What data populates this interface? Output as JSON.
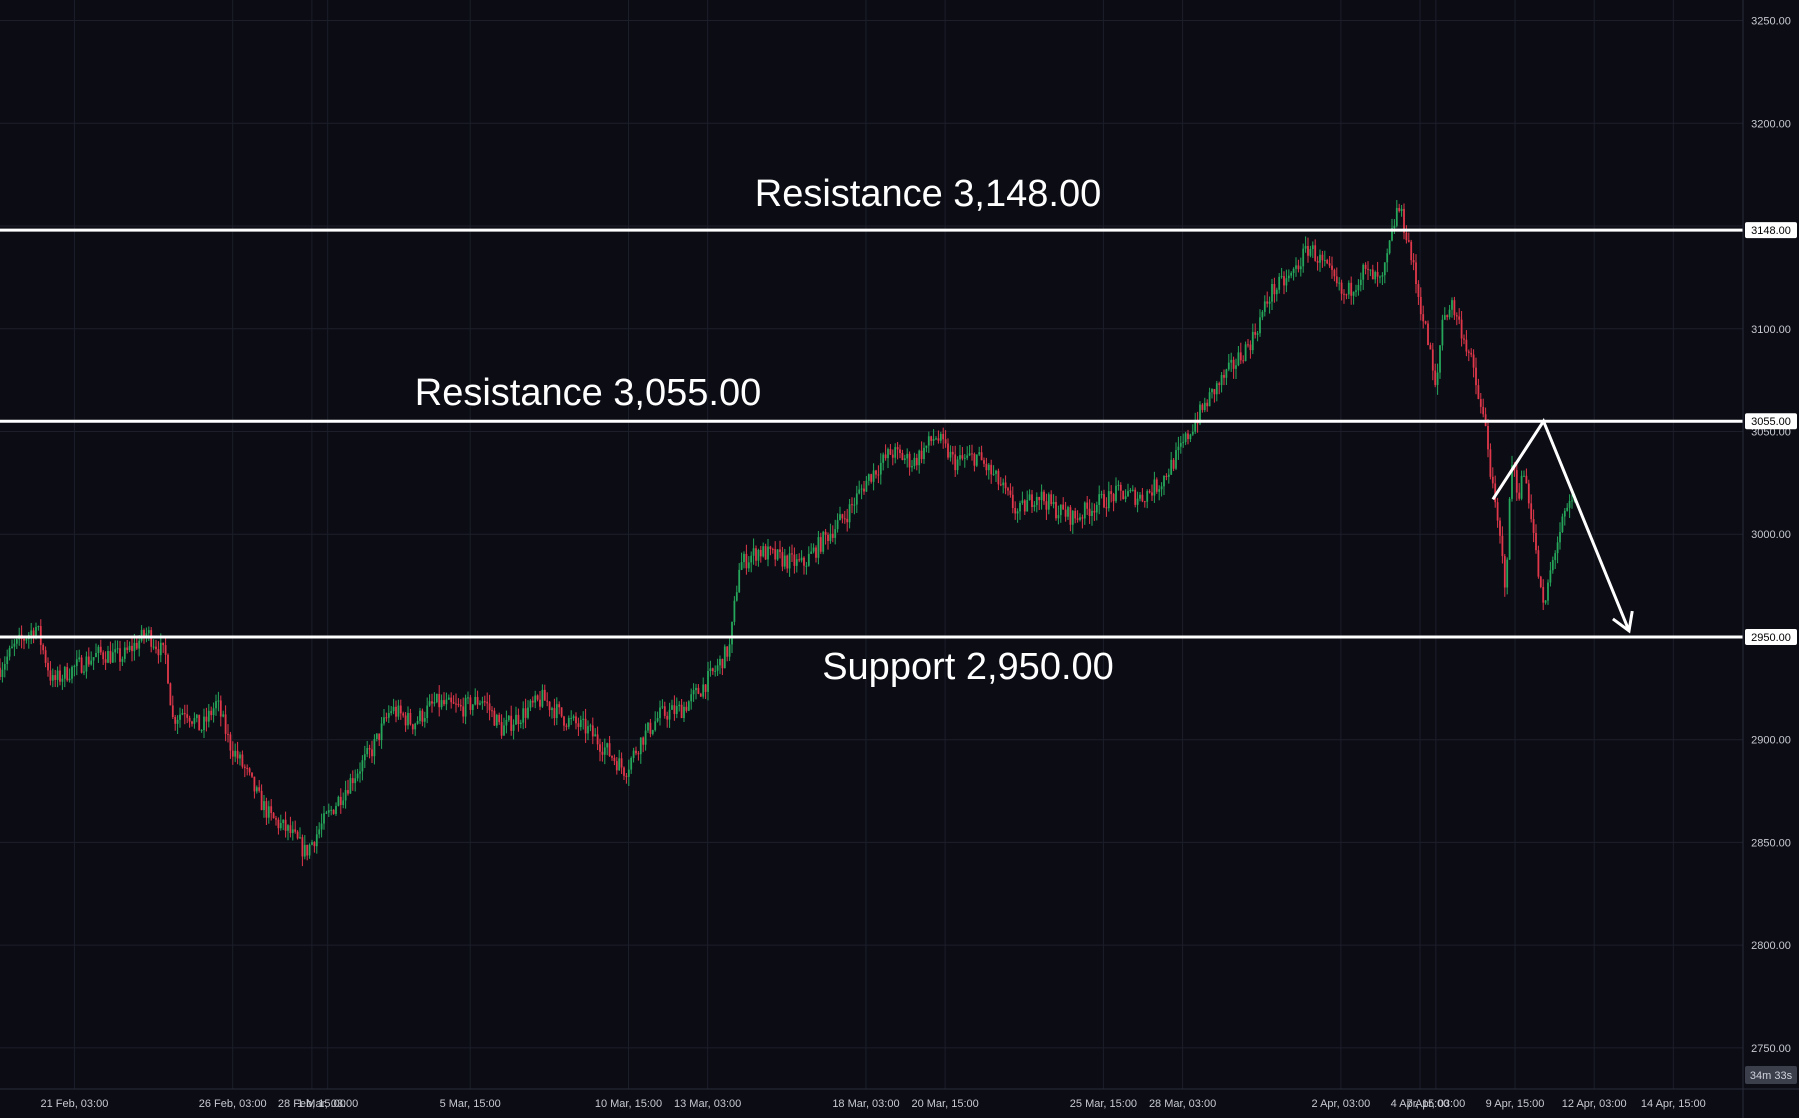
{
  "colors": {
    "background": "#0b0c14",
    "grid": "#1c1e2a",
    "up": "#26a65b",
    "down": "#e0384a",
    "annotation_line": "#ffffff",
    "axis_text": "#c8cad2",
    "timer_bg": "#3b3f4c"
  },
  "countdown": "34m 33s",
  "chart_data": {
    "type": "candlestick",
    "title": "",
    "xlabel": "",
    "ylabel": "",
    "ylim": [
      2730,
      3260
    ],
    "y_ticks": [
      "2750.00",
      "2800.00",
      "2850.00",
      "2900.00",
      "2950.00",
      "3000.00",
      "3050.00",
      "3100.00",
      "3150.00",
      "3200.00",
      "3250.00"
    ],
    "y_tick_values": [
      2750,
      2800,
      2850,
      2900,
      2950,
      3000,
      3050,
      3100,
      3150,
      3200,
      3250
    ],
    "x_ticks": [
      "21 Feb, 03:00",
      "26 Feb, 03:00",
      "28 Feb, 15:00",
      "1 Mar, 03:00",
      "5 Mar, 15:00",
      "10 Mar, 15:00",
      "13 Mar, 03:00",
      "18 Mar, 03:00",
      "20 Mar, 15:00",
      "25 Mar, 15:00",
      "28 Mar, 03:00",
      "2 Apr, 03:00",
      "4 Apr, 15:00",
      "7 Apr, 03:00",
      "9 Apr, 15:00",
      "12 Apr, 03:00",
      "14 Apr, 15:00"
    ],
    "x_tick_index": [
      0,
      5,
      7.5,
      8,
      12.5,
      17.5,
      20,
      25,
      27.5,
      32.5,
      35,
      40,
      42.5,
      43,
      45.5,
      48,
      50.5
    ],
    "x_range_index": [
      -2.35,
      52.7
    ],
    "grid": true,
    "levels": [
      {
        "name": "Resistance",
        "value": 3148,
        "tag": "3148.00",
        "label": "Resistance 3,148.00"
      },
      {
        "name": "Resistance",
        "value": 3055,
        "tag": "3055.00",
        "label": "Resistance 3,055.00"
      },
      {
        "name": "Support",
        "value": 2950,
        "tag": "2950.00",
        "label": "Support 2,950.00"
      }
    ],
    "projection": [
      {
        "index": 44.8,
        "value": 3017
      },
      {
        "index": 46.4,
        "value": 3055
      },
      {
        "index": 49.1,
        "value": 2953
      }
    ],
    "price_path": [
      {
        "index": -2.35,
        "value": 2935
      },
      {
        "index": -1.9,
        "value": 2945
      },
      {
        "index": -1.2,
        "value": 2955
      },
      {
        "index": -0.7,
        "value": 2928
      },
      {
        "index": 0.0,
        "value": 2935
      },
      {
        "index": 0.8,
        "value": 2942
      },
      {
        "index": 1.5,
        "value": 2940
      },
      {
        "index": 2.3,
        "value": 2952
      },
      {
        "index": 2.9,
        "value": 2940
      },
      {
        "index": 3.1,
        "value": 2910
      },
      {
        "index": 3.5,
        "value": 2915
      },
      {
        "index": 4.0,
        "value": 2905
      },
      {
        "index": 4.5,
        "value": 2918
      },
      {
        "index": 4.9,
        "value": 2898
      },
      {
        "index": 5.4,
        "value": 2885
      },
      {
        "index": 5.8,
        "value": 2872
      },
      {
        "index": 6.2,
        "value": 2862
      },
      {
        "index": 6.8,
        "value": 2855
      },
      {
        "index": 7.3,
        "value": 2845
      },
      {
        "index": 7.8,
        "value": 2858
      },
      {
        "index": 8.3,
        "value": 2870
      },
      {
        "index": 8.8,
        "value": 2882
      },
      {
        "index": 9.4,
        "value": 2895
      },
      {
        "index": 10.0,
        "value": 2915
      },
      {
        "index": 10.7,
        "value": 2908
      },
      {
        "index": 11.4,
        "value": 2918
      },
      {
        "index": 12.2,
        "value": 2915
      },
      {
        "index": 12.9,
        "value": 2920
      },
      {
        "index": 13.5,
        "value": 2905
      },
      {
        "index": 14.1,
        "value": 2912
      },
      {
        "index": 14.8,
        "value": 2920
      },
      {
        "index": 15.5,
        "value": 2910
      },
      {
        "index": 16.2,
        "value": 2905
      },
      {
        "index": 16.8,
        "value": 2895
      },
      {
        "index": 17.4,
        "value": 2885
      },
      {
        "index": 17.9,
        "value": 2900
      },
      {
        "index": 18.5,
        "value": 2912
      },
      {
        "index": 19.2,
        "value": 2915
      },
      {
        "index": 19.8,
        "value": 2925
      },
      {
        "index": 20.3,
        "value": 2935
      },
      {
        "index": 20.7,
        "value": 2945
      },
      {
        "index": 21.0,
        "value": 2985
      },
      {
        "index": 21.6,
        "value": 2992
      },
      {
        "index": 22.3,
        "value": 2988
      },
      {
        "index": 23.0,
        "value": 2985
      },
      {
        "index": 23.7,
        "value": 2998
      },
      {
        "index": 24.4,
        "value": 3010
      },
      {
        "index": 25.1,
        "value": 3028
      },
      {
        "index": 25.8,
        "value": 3040
      },
      {
        "index": 26.5,
        "value": 3035
      },
      {
        "index": 27.2,
        "value": 3048
      },
      {
        "index": 27.8,
        "value": 3035
      },
      {
        "index": 28.5,
        "value": 3038
      },
      {
        "index": 29.2,
        "value": 3025
      },
      {
        "index": 29.8,
        "value": 3010
      },
      {
        "index": 30.4,
        "value": 3020
      },
      {
        "index": 31.0,
        "value": 3012
      },
      {
        "index": 31.6,
        "value": 3008
      },
      {
        "index": 32.3,
        "value": 3015
      },
      {
        "index": 33.0,
        "value": 3020
      },
      {
        "index": 33.7,
        "value": 3018
      },
      {
        "index": 34.3,
        "value": 3025
      },
      {
        "index": 34.9,
        "value": 3040
      },
      {
        "index": 35.4,
        "value": 3055
      },
      {
        "index": 36.0,
        "value": 3070
      },
      {
        "index": 36.6,
        "value": 3082
      },
      {
        "index": 37.2,
        "value": 3095
      },
      {
        "index": 37.8,
        "value": 3118
      },
      {
        "index": 38.4,
        "value": 3125
      },
      {
        "index": 39.0,
        "value": 3140
      },
      {
        "index": 39.5,
        "value": 3130
      },
      {
        "index": 40.1,
        "value": 3115
      },
      {
        "index": 40.7,
        "value": 3128
      },
      {
        "index": 41.3,
        "value": 3122
      },
      {
        "index": 41.8,
        "value": 3160
      },
      {
        "index": 42.1,
        "value": 3145
      },
      {
        "index": 42.4,
        "value": 3120
      },
      {
        "index": 42.8,
        "value": 3090
      },
      {
        "index": 43.0,
        "value": 3068
      },
      {
        "index": 43.2,
        "value": 3105
      },
      {
        "index": 43.5,
        "value": 3112
      },
      {
        "index": 43.8,
        "value": 3100
      },
      {
        "index": 44.1,
        "value": 3085
      },
      {
        "index": 44.4,
        "value": 3062
      },
      {
        "index": 44.6,
        "value": 3050
      },
      {
        "index": 44.8,
        "value": 3020
      },
      {
        "index": 45.0,
        "value": 3000
      },
      {
        "index": 45.2,
        "value": 2975
      },
      {
        "index": 45.4,
        "value": 3035
      },
      {
        "index": 45.6,
        "value": 3020
      },
      {
        "index": 45.8,
        "value": 3030
      },
      {
        "index": 46.0,
        "value": 3012
      },
      {
        "index": 46.2,
        "value": 2985
      },
      {
        "index": 46.4,
        "value": 2962
      },
      {
        "index": 46.6,
        "value": 2980
      },
      {
        "index": 46.8,
        "value": 2995
      },
      {
        "index": 47.0,
        "value": 3005
      },
      {
        "index": 47.2,
        "value": 3013
      },
      {
        "index": 47.4,
        "value": 3017
      }
    ]
  }
}
